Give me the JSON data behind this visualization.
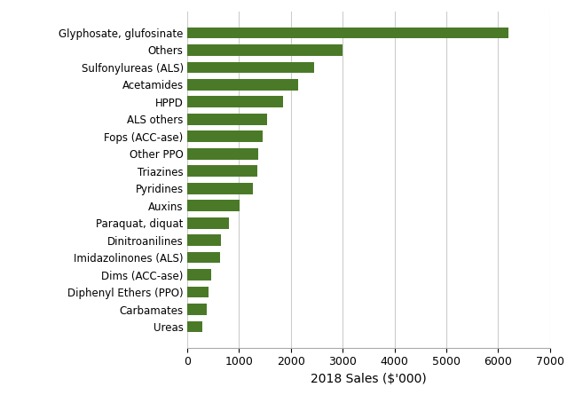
{
  "categories": [
    "Glyphosate, glufosinate",
    "Others",
    "Sulfonylureas (ALS)",
    "Acetamides",
    "HPPD",
    "ALS others",
    "Fops (ACC-ase)",
    "Other PPO",
    "Triazines",
    "Pyridines",
    "Auxins",
    "Paraquat, diquat",
    "Dinitroanilines",
    "Imidazolinones (ALS)",
    "Dims (ACC-ase)",
    "Diphenyl Ethers (PPO)",
    "Carbamates",
    "Ureas"
  ],
  "values": [
    6200,
    3000,
    2450,
    2150,
    1850,
    1550,
    1450,
    1380,
    1360,
    1270,
    1020,
    800,
    660,
    640,
    460,
    420,
    380,
    300
  ],
  "bar_color": "#4a7a28",
  "xlabel": "2018 Sales ($'000)",
  "xlim": [
    0,
    7000
  ],
  "xticks": [
    0,
    1000,
    2000,
    3000,
    4000,
    5000,
    6000,
    7000
  ],
  "background_color": "#ffffff",
  "grid_color": "#cccccc",
  "label_fontsize": 8.5,
  "xlabel_fontsize": 10,
  "xtick_fontsize": 9,
  "bar_height": 0.65
}
